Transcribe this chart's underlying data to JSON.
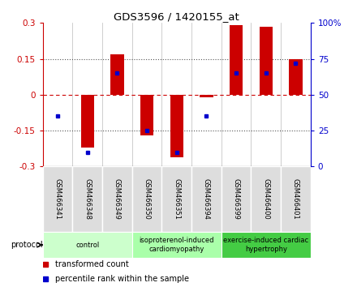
{
  "title": "GDS3596 / 1420155_at",
  "samples": [
    "GSM466341",
    "GSM466348",
    "GSM466349",
    "GSM466350",
    "GSM466351",
    "GSM466394",
    "GSM466399",
    "GSM466400",
    "GSM466401"
  ],
  "transformed_count": [
    0.0,
    -0.22,
    0.17,
    -0.17,
    -0.26,
    -0.01,
    0.29,
    0.285,
    0.15
  ],
  "percentile_rank_pct": [
    35,
    10,
    65,
    25,
    10,
    35,
    65,
    65,
    72
  ],
  "ylim": [
    -0.3,
    0.3
  ],
  "yticks": [
    -0.3,
    -0.15,
    0.0,
    0.15,
    0.3
  ],
  "ytick_labels_left": [
    "-0.3",
    "-0.15",
    "0",
    "0.15",
    "0.3"
  ],
  "ytick_labels_right": [
    "0",
    "25",
    "50",
    "75",
    "100%"
  ],
  "bar_color": "#cc0000",
  "dot_color": "#0000cc",
  "protocol_groups": [
    {
      "label": "control",
      "start": 0,
      "end": 3,
      "color": "#ccffcc"
    },
    {
      "label": "isoproterenol-induced\ncardiomyopathy",
      "start": 3,
      "end": 6,
      "color": "#aaffaa"
    },
    {
      "label": "exercise-induced cardiac\nhypertrophy",
      "start": 6,
      "end": 9,
      "color": "#44cc44"
    }
  ],
  "legend_items": [
    {
      "label": "transformed count",
      "color": "#cc0000"
    },
    {
      "label": "percentile rank within the sample",
      "color": "#0000cc"
    }
  ],
  "protocol_label": "protocol",
  "bg_color": "#ffffff",
  "sample_box_color": "#dddddd",
  "bar_width": 0.45
}
